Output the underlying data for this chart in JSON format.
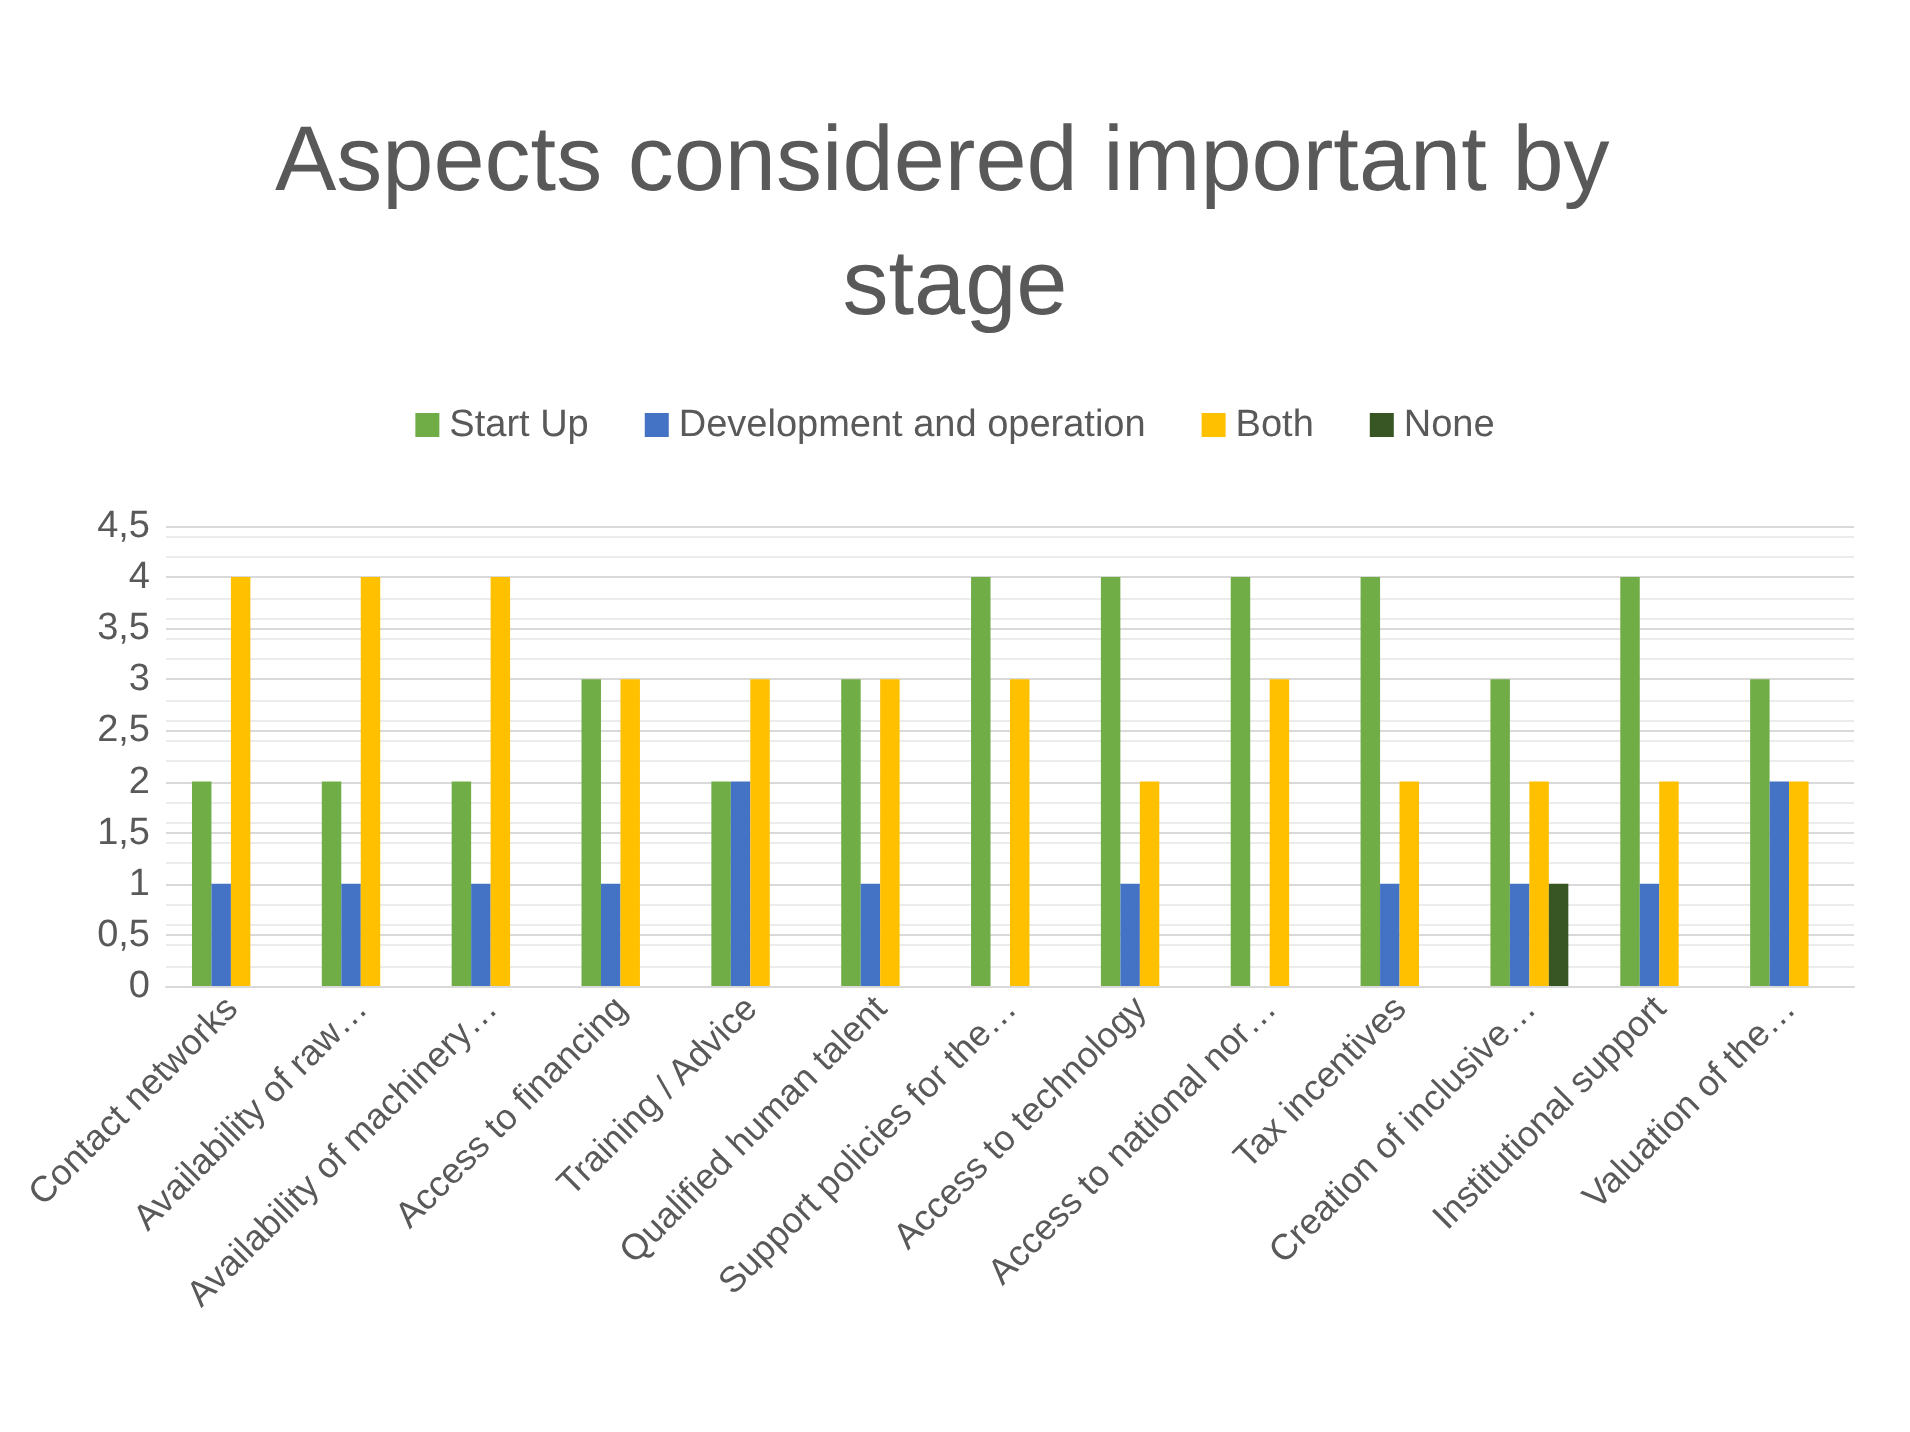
{
  "chart_data": {
    "type": "bar",
    "title": "Aspects considered important by stage",
    "categories": [
      "Contact networks",
      "Availability of raw…",
      "Availability of machinery…",
      "Access to financing",
      "Training / Advice",
      "Qualified human talent",
      "Support policies for the…",
      "Access to technology",
      "Access to national nor…",
      "Tax incentives",
      "Creation of inclusive…",
      "Institutional support",
      "Valuation of the…"
    ],
    "series": [
      {
        "name": "Start Up",
        "color": "#70ad47",
        "values": [
          2,
          2,
          2,
          3,
          2,
          3,
          4,
          4,
          4,
          4,
          3,
          4,
          3
        ]
      },
      {
        "name": "Development and operation",
        "color": "#4472c4",
        "values": [
          1,
          1,
          1,
          1,
          2,
          1,
          0,
          1,
          0,
          1,
          1,
          1,
          2
        ]
      },
      {
        "name": "Both",
        "color": "#ffc000",
        "values": [
          4,
          4,
          4,
          3,
          3,
          3,
          3,
          2,
          3,
          2,
          2,
          2,
          2
        ]
      },
      {
        "name": "None",
        "color": "#375623",
        "values": [
          0,
          0,
          0,
          0,
          0,
          0,
          0,
          0,
          0,
          0,
          1,
          0,
          0
        ]
      }
    ],
    "ylim": [
      0,
      4.5
    ],
    "yticks": [
      0,
      {
        "value": 0.5,
        "label": "0,5"
      },
      1,
      {
        "value": 1.5,
        "label": "1,5"
      },
      2,
      {
        "value": 2.5,
        "label": "2,5"
      },
      3,
      {
        "value": 3.5,
        "label": "3,5"
      },
      4,
      {
        "value": 4.5,
        "label": "4,5"
      }
    ],
    "grid": true,
    "legend": "top"
  }
}
